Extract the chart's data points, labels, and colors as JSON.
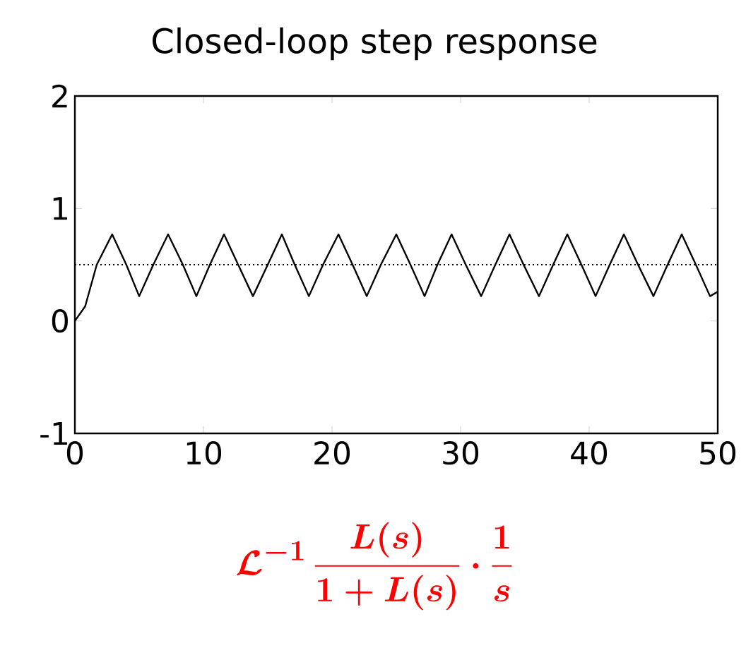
{
  "chart_data": {
    "type": "line",
    "title": "Closed-loop step response",
    "annotations": [
      "\\mathcal{L}^{-1}\\,\\frac{L(s)}{1+L(s)}\\cdot\\frac{1}{s}"
    ],
    "x": [
      0,
      0.8,
      1.7,
      2.9,
      4.0,
      5.0,
      6.1,
      7.25,
      8.4,
      9.45,
      10.5,
      11.6,
      12.7,
      13.85,
      15.0,
      16.1,
      17.1,
      18.2,
      19.3,
      20.5,
      21.6,
      22.7,
      23.8,
      25.0,
      26.1,
      27.2,
      28.2,
      29.3,
      30.4,
      31.6,
      32.7,
      33.8,
      34.9,
      36.1,
      37.2,
      38.3,
      39.4,
      40.5,
      41.6,
      42.7,
      43.8,
      45.0,
      46.1,
      47.2,
      48.3,
      49.4,
      50
    ],
    "series": [
      {
        "color": "#000000",
        "values": [
          0,
          0.13,
          0.5,
          0.77,
          0.5,
          0.22,
          0.5,
          0.77,
          0.5,
          0.22,
          0.5,
          0.77,
          0.5,
          0.22,
          0.5,
          0.77,
          0.5,
          0.22,
          0.5,
          0.77,
          0.5,
          0.22,
          0.5,
          0.77,
          0.5,
          0.22,
          0.5,
          0.77,
          0.5,
          0.22,
          0.5,
          0.77,
          0.5,
          0.22,
          0.5,
          0.77,
          0.5,
          0.22,
          0.5,
          0.77,
          0.5,
          0.22,
          0.5,
          0.77,
          0.5,
          0.22,
          0.26
        ]
      }
    ],
    "xlim": [
      0,
      50
    ],
    "ylim": [
      -1,
      2
    ],
    "xticks": [
      0,
      10,
      20,
      30,
      40,
      50
    ],
    "yticks": [
      -1,
      0,
      1,
      2
    ],
    "ref_lines": [
      {
        "axis": "y",
        "value": 0.5,
        "line_style": "dotted",
        "color": "#000000"
      }
    ]
  }
}
